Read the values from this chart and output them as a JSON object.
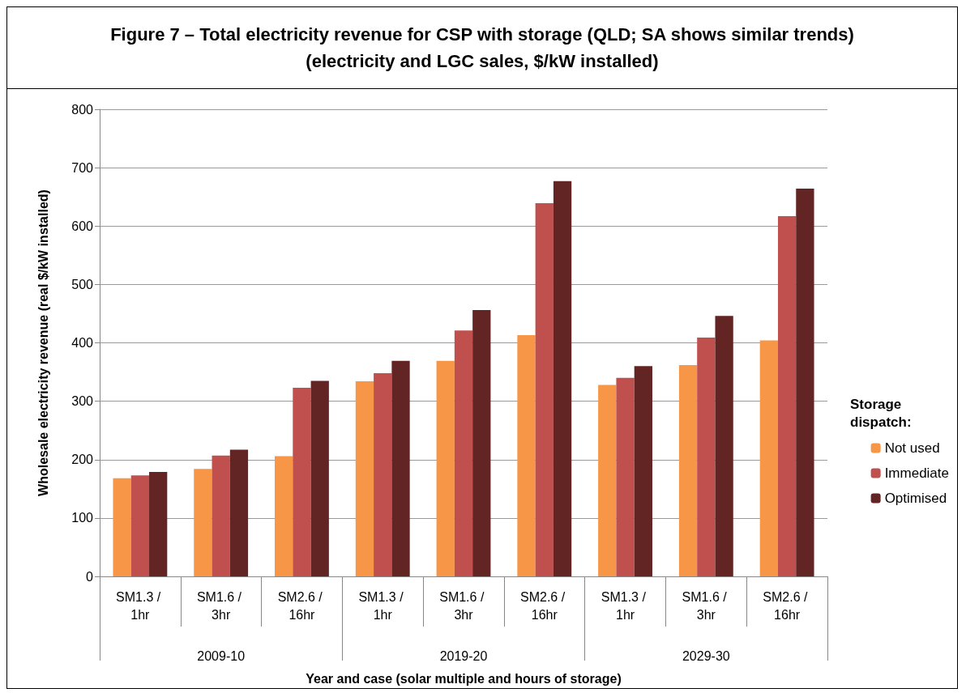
{
  "chart_data": {
    "type": "bar",
    "title": "Figure 7 – Total electricity revenue for CSP with storage (QLD; SA shows similar trends)\n(electricity and LGC sales, $/kW installed)",
    "xlabel": "Year and case (solar multiple and hours of storage)",
    "ylabel": "Wholesale electricity revenue (real $/kW installed)",
    "legend_title": "Storage dispatch:",
    "categories": [
      "SM1.3 / 1hr",
      "SM1.6 / 3hr",
      "SM2.6 / 16hr",
      "SM1.3 / 1hr",
      "SM1.6 / 3hr",
      "SM2.6 / 16hr",
      "SM1.3 / 1hr",
      "SM1.6 / 3hr",
      "SM2.6 / 16hr"
    ],
    "annotations": [
      "2009-10",
      "2019-20",
      "2029-30"
    ],
    "series": [
      {
        "name": "Not used",
        "color": "#f79646",
        "values": [
          168,
          184,
          206,
          334,
          369,
          413,
          328,
          362,
          404
        ]
      },
      {
        "name": "Immediate",
        "color": "#c0504d",
        "values": [
          173,
          207,
          323,
          348,
          421,
          639,
          340,
          409,
          617
        ]
      },
      {
        "name": "Optimised",
        "color": "#632523",
        "values": [
          179,
          217,
          335,
          369,
          456,
          677,
          360,
          446,
          664
        ]
      }
    ],
    "ylim": [
      0,
      800
    ],
    "yticks": [
      0,
      100,
      200,
      300,
      400,
      500,
      600,
      700,
      800
    ],
    "grid": "y",
    "legend": "right"
  }
}
